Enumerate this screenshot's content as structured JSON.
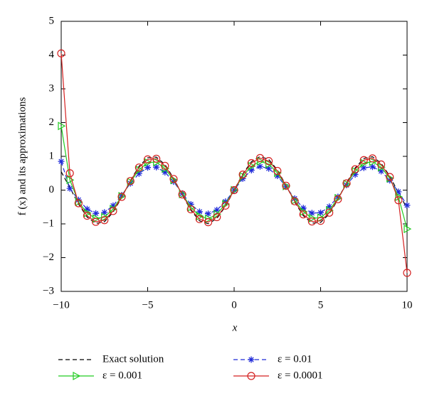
{
  "chart_data": {
    "type": "line",
    "xlabel": "x",
    "ylabel": "f (x) and its approximations",
    "x": [
      -10,
      -9.5,
      -9,
      -8.5,
      -8,
      -7.5,
      -7,
      -6.5,
      -6,
      -5.5,
      -5,
      -4.5,
      -4,
      -3.5,
      -3,
      -2.5,
      -2,
      -1.5,
      -1,
      -0.5,
      0,
      0.5,
      1,
      1.5,
      2,
      2.5,
      3,
      3.5,
      4,
      4.5,
      5,
      5.5,
      6,
      6.5,
      7,
      7.5,
      8,
      8.5,
      9,
      9.5,
      10
    ],
    "series": [
      {
        "name": "Exact solution",
        "color": "#000000",
        "dash": true,
        "marker": "none",
        "values": [
          0.544,
          0.075,
          -0.412,
          -0.798,
          -0.989,
          -0.938,
          -0.657,
          -0.215,
          0.279,
          0.706,
          0.959,
          0.978,
          0.757,
          0.351,
          -0.141,
          -0.598,
          -0.909,
          -0.997,
          -0.841,
          -0.479,
          0,
          0.479,
          0.841,
          0.997,
          0.909,
          0.598,
          0.141,
          -0.351,
          -0.757,
          -0.978,
          -0.959,
          -0.706,
          -0.279,
          0.215,
          0.657,
          0.938,
          0.989,
          0.798,
          0.412,
          -0.075,
          -0.544
        ]
      },
      {
        "name": "ε = 0.01",
        "color": "#1f2ad8",
        "dash": true,
        "marker": "star",
        "values": [
          0.85,
          0.05,
          -0.29,
          -0.56,
          -0.69,
          -0.66,
          -0.46,
          -0.15,
          0.2,
          0.49,
          0.67,
          0.68,
          0.53,
          0.25,
          -0.1,
          -0.42,
          -0.64,
          -0.7,
          -0.59,
          -0.34,
          0,
          0.34,
          0.59,
          0.7,
          0.64,
          0.42,
          0.1,
          -0.25,
          -0.53,
          -0.68,
          -0.67,
          -0.49,
          -0.2,
          0.15,
          0.46,
          0.66,
          0.69,
          0.56,
          0.29,
          -0.05,
          -0.45
        ]
      },
      {
        "name": "ε = 0.001",
        "color": "#22cc22",
        "dash": false,
        "marker": "triangle",
        "values": [
          1.9,
          0.3,
          -0.35,
          -0.68,
          -0.84,
          -0.8,
          -0.56,
          -0.18,
          0.24,
          0.6,
          0.82,
          0.83,
          0.64,
          0.3,
          -0.12,
          -0.51,
          -0.77,
          -0.85,
          -0.71,
          -0.41,
          0,
          0.41,
          0.71,
          0.85,
          0.77,
          0.51,
          0.12,
          -0.3,
          -0.64,
          -0.83,
          -0.82,
          -0.6,
          -0.24,
          0.18,
          0.56,
          0.8,
          0.84,
          0.68,
          0.35,
          -0.2,
          -1.15
        ]
      },
      {
        "name": "ε = 0.0001",
        "color": "#d42020",
        "dash": false,
        "marker": "circle",
        "values": [
          4.05,
          0.5,
          -0.39,
          -0.76,
          -0.94,
          -0.89,
          -0.62,
          -0.2,
          0.27,
          0.67,
          0.91,
          0.93,
          0.72,
          0.33,
          -0.13,
          -0.57,
          -0.86,
          -0.95,
          -0.8,
          -0.46,
          0,
          0.46,
          0.8,
          0.95,
          0.86,
          0.57,
          0.13,
          -0.33,
          -0.72,
          -0.93,
          -0.91,
          -0.67,
          -0.27,
          0.2,
          0.62,
          0.89,
          0.94,
          0.76,
          0.39,
          -0.3,
          -2.45
        ]
      }
    ],
    "xlim": [
      -10,
      10
    ],
    "xticks": [
      {
        "value": -10,
        "label": "−10"
      },
      {
        "value": -5,
        "label": "−5"
      },
      0,
      5,
      10
    ],
    "ylim": [
      -3,
      5
    ],
    "yticks": [
      {
        "value": -3,
        "label": "−3"
      },
      {
        "value": -2,
        "label": "−2"
      },
      {
        "value": -1,
        "label": "−1"
      },
      0,
      1,
      2,
      3,
      4,
      5
    ],
    "legend": "bottom"
  }
}
